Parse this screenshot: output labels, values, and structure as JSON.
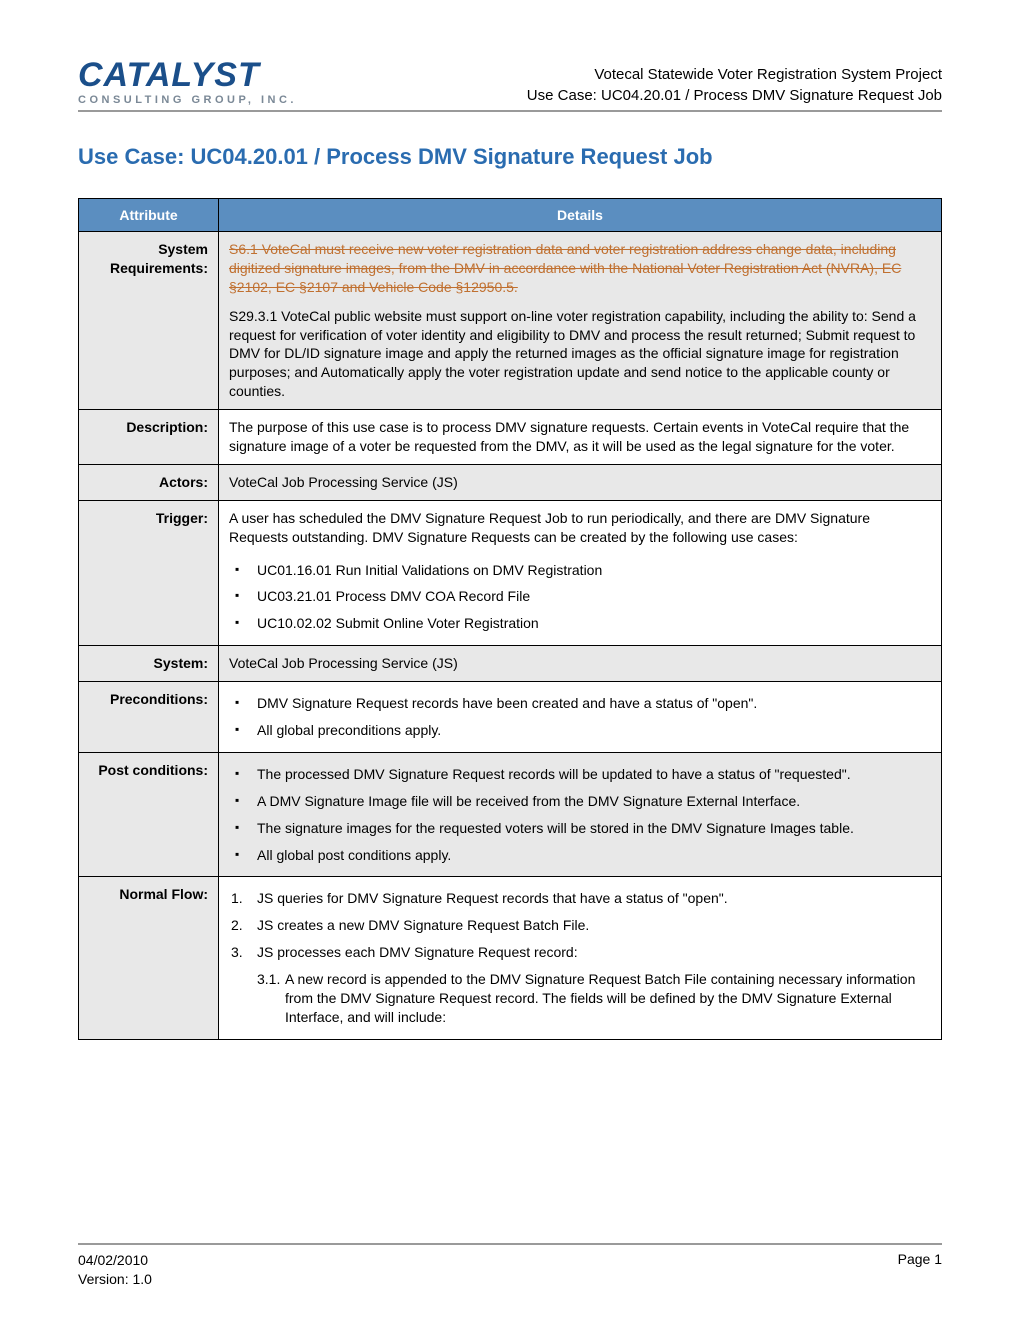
{
  "logo": {
    "main": "CATALYST",
    "sub": "CONSULTING GROUP, INC."
  },
  "header": {
    "line1": "Votecal Statewide Voter Registration System Project",
    "line2": "Use Case: UC04.20.01 / Process DMV Signature Request Job"
  },
  "title": "Use Case: UC04.20.01 / Process DMV Signature Request Job",
  "columns": {
    "attribute": "Attribute",
    "details": "Details"
  },
  "rows": {
    "system_requirements": {
      "label": "System Requirements:",
      "struck": "S6.1 VoteCal must receive new voter registration data and voter registration address change data, including digitized signature images, from the DMV in accordance with the National Voter Registration Act (NVRA), EC §2102, EC §2107 and Vehicle Code §12950.5.",
      "para2": "S29.3.1 VoteCal public website must support on-line voter registration capability, including the ability to: Send a request for verification of voter identity and eligibility to DMV and process the result returned; Submit request to DMV for DL/ID signature image and apply the returned images as the official signature image for registration purposes; and Automatically apply the voter registration update and send notice to the applicable county or counties."
    },
    "description": {
      "label": "Description:",
      "text": "The purpose of this use case is to process DMV signature requests.  Certain events in VoteCal require that the signature image of a voter be requested from the DMV, as it will be used as the legal signature for the voter."
    },
    "actors": {
      "label": "Actors:",
      "text": "VoteCal Job Processing Service (JS)"
    },
    "trigger": {
      "label": "Trigger:",
      "intro": "A user has scheduled the DMV Signature Request Job to run periodically, and there are DMV Signature Requests outstanding.  DMV Signature Requests can be created by the following use cases:",
      "items": [
        "UC01.16.01 Run Initial Validations on DMV Registration",
        "UC03.21.01 Process DMV COA Record File",
        "UC10.02.02 Submit Online Voter Registration"
      ]
    },
    "system": {
      "label": "System:",
      "text": "VoteCal Job Processing Service (JS)"
    },
    "preconditions": {
      "label": "Preconditions:",
      "items": [
        "DMV Signature Request records have been created and have a status of \"open\".",
        "All global preconditions apply."
      ]
    },
    "postconditions": {
      "label": "Post conditions:",
      "items": [
        "The processed DMV Signature Request records will be updated to have a status of \"requested\".",
        "A DMV Signature Image file will be received from the DMV Signature External Interface.",
        "The signature images for the requested voters will be stored in the DMV Signature Images table.",
        "All global post conditions apply."
      ]
    },
    "normalflow": {
      "label": "Normal Flow:",
      "steps": [
        "JS queries for DMV Signature Request records that have a status of \"open\".",
        "JS creates a new DMV Signature Request Batch File.",
        "JS processes each DMV Signature Request record:"
      ],
      "sub": {
        "num": "3.1.",
        "text": "A new record is appended to the DMV Signature Request Batch File containing necessary information from the DMV Signature Request record. The fields will be defined by the DMV Signature External Interface, and will include:"
      }
    }
  },
  "footer": {
    "date": "04/02/2010",
    "version": "Version: 1.0",
    "page": "Page 1"
  },
  "colors": {
    "header_bg": "#5b8ec0",
    "gray_bg": "#e8e8e8",
    "title_color": "#2a6cb0",
    "logo_color": "#1b4f8a",
    "struck_color": "#c07030"
  }
}
